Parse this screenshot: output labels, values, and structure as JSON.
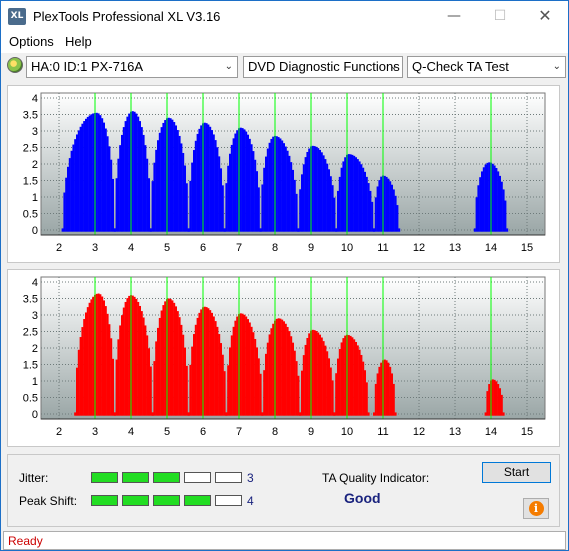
{
  "window": {
    "title": "PlexTools Professional XL V3.16",
    "icon_text": "XL"
  },
  "menu": {
    "options": "Options",
    "help": "Help"
  },
  "toolbar": {
    "drive": "HA:0 ID:1  PX-716A",
    "function": "DVD Diagnostic Functions",
    "test": "Q-Check TA Test"
  },
  "colors": {
    "upper_fill": "#0000ff",
    "lower_fill": "#ff0000",
    "grid_line": "#00ff00",
    "plot_bg_top": "#ffffff",
    "plot_bg_bottom": "#9aa6a6"
  },
  "chart_data": [
    {
      "type": "area",
      "name": "upper-ta-chart",
      "x_ticks": [
        "2",
        "3",
        "4",
        "5",
        "6",
        "7",
        "8",
        "9",
        "10",
        "11",
        "12",
        "13",
        "14",
        "15"
      ],
      "y_ticks": [
        "0",
        "0.5",
        "1",
        "1.5",
        "2",
        "2.5",
        "3",
        "3.5",
        "4"
      ],
      "xlim": [
        1.5,
        15.5
      ],
      "ylim": [
        -0.15,
        4.15
      ],
      "green_lines": [
        3,
        4,
        5,
        6,
        7,
        8,
        9,
        10,
        11,
        14
      ],
      "peaks": [
        {
          "start": 2.1,
          "end": 3.55,
          "center": 3.05,
          "height": 3.55
        },
        {
          "start": 3.55,
          "end": 4.55,
          "center": 4.05,
          "height": 3.6
        },
        {
          "start": 4.55,
          "end": 5.6,
          "center": 5.05,
          "height": 3.4
        },
        {
          "start": 5.6,
          "end": 6.6,
          "center": 6.05,
          "height": 3.25
        },
        {
          "start": 6.6,
          "end": 7.6,
          "center": 7.05,
          "height": 3.1
        },
        {
          "start": 7.6,
          "end": 8.65,
          "center": 8.0,
          "height": 2.85
        },
        {
          "start": 8.65,
          "end": 9.7,
          "center": 9.05,
          "height": 2.55
        },
        {
          "start": 9.7,
          "end": 10.75,
          "center": 10.05,
          "height": 2.3
        },
        {
          "start": 10.75,
          "end": 11.45,
          "center": 11.0,
          "height": 1.65
        },
        {
          "start": 13.55,
          "end": 14.45,
          "center": 13.95,
          "height": 2.05
        }
      ]
    },
    {
      "type": "area",
      "name": "lower-ta-chart",
      "x_ticks": [
        "2",
        "3",
        "4",
        "5",
        "6",
        "7",
        "8",
        "9",
        "10",
        "11",
        "12",
        "13",
        "14",
        "15"
      ],
      "y_ticks": [
        "0",
        "0.5",
        "1",
        "1.5",
        "2",
        "2.5",
        "3",
        "3.5",
        "4"
      ],
      "xlim": [
        1.5,
        15.5
      ],
      "ylim": [
        -0.15,
        4.15
      ],
      "green_lines": [
        3,
        4,
        5,
        6,
        7,
        8,
        9,
        10,
        11,
        14
      ],
      "peaks": [
        {
          "start": 2.45,
          "end": 3.55,
          "center": 3.1,
          "height": 3.65
        },
        {
          "start": 3.55,
          "end": 4.6,
          "center": 4.0,
          "height": 3.6
        },
        {
          "start": 4.6,
          "end": 5.6,
          "center": 5.05,
          "height": 3.5
        },
        {
          "start": 5.6,
          "end": 6.65,
          "center": 6.05,
          "height": 3.25
        },
        {
          "start": 6.65,
          "end": 7.65,
          "center": 7.05,
          "height": 3.05
        },
        {
          "start": 7.65,
          "end": 8.7,
          "center": 8.1,
          "height": 2.9
        },
        {
          "start": 8.7,
          "end": 9.65,
          "center": 9.05,
          "height": 2.55
        },
        {
          "start": 9.65,
          "end": 10.6,
          "center": 10.0,
          "height": 2.4
        },
        {
          "start": 10.75,
          "end": 11.35,
          "center": 11.05,
          "height": 1.65
        },
        {
          "start": 13.85,
          "end": 14.35,
          "center": 14.05,
          "height": 1.05
        }
      ]
    }
  ],
  "results": {
    "jitter_label": "Jitter:",
    "jitter_value": "3",
    "jitter_level": 3,
    "peak_label": "Peak Shift:",
    "peak_value": "4",
    "peak_level": 4,
    "bar_cells": 5,
    "quality_label": "TA Quality Indicator:",
    "quality_value": "Good",
    "start_label": "Start"
  },
  "status": {
    "text": "Ready"
  }
}
